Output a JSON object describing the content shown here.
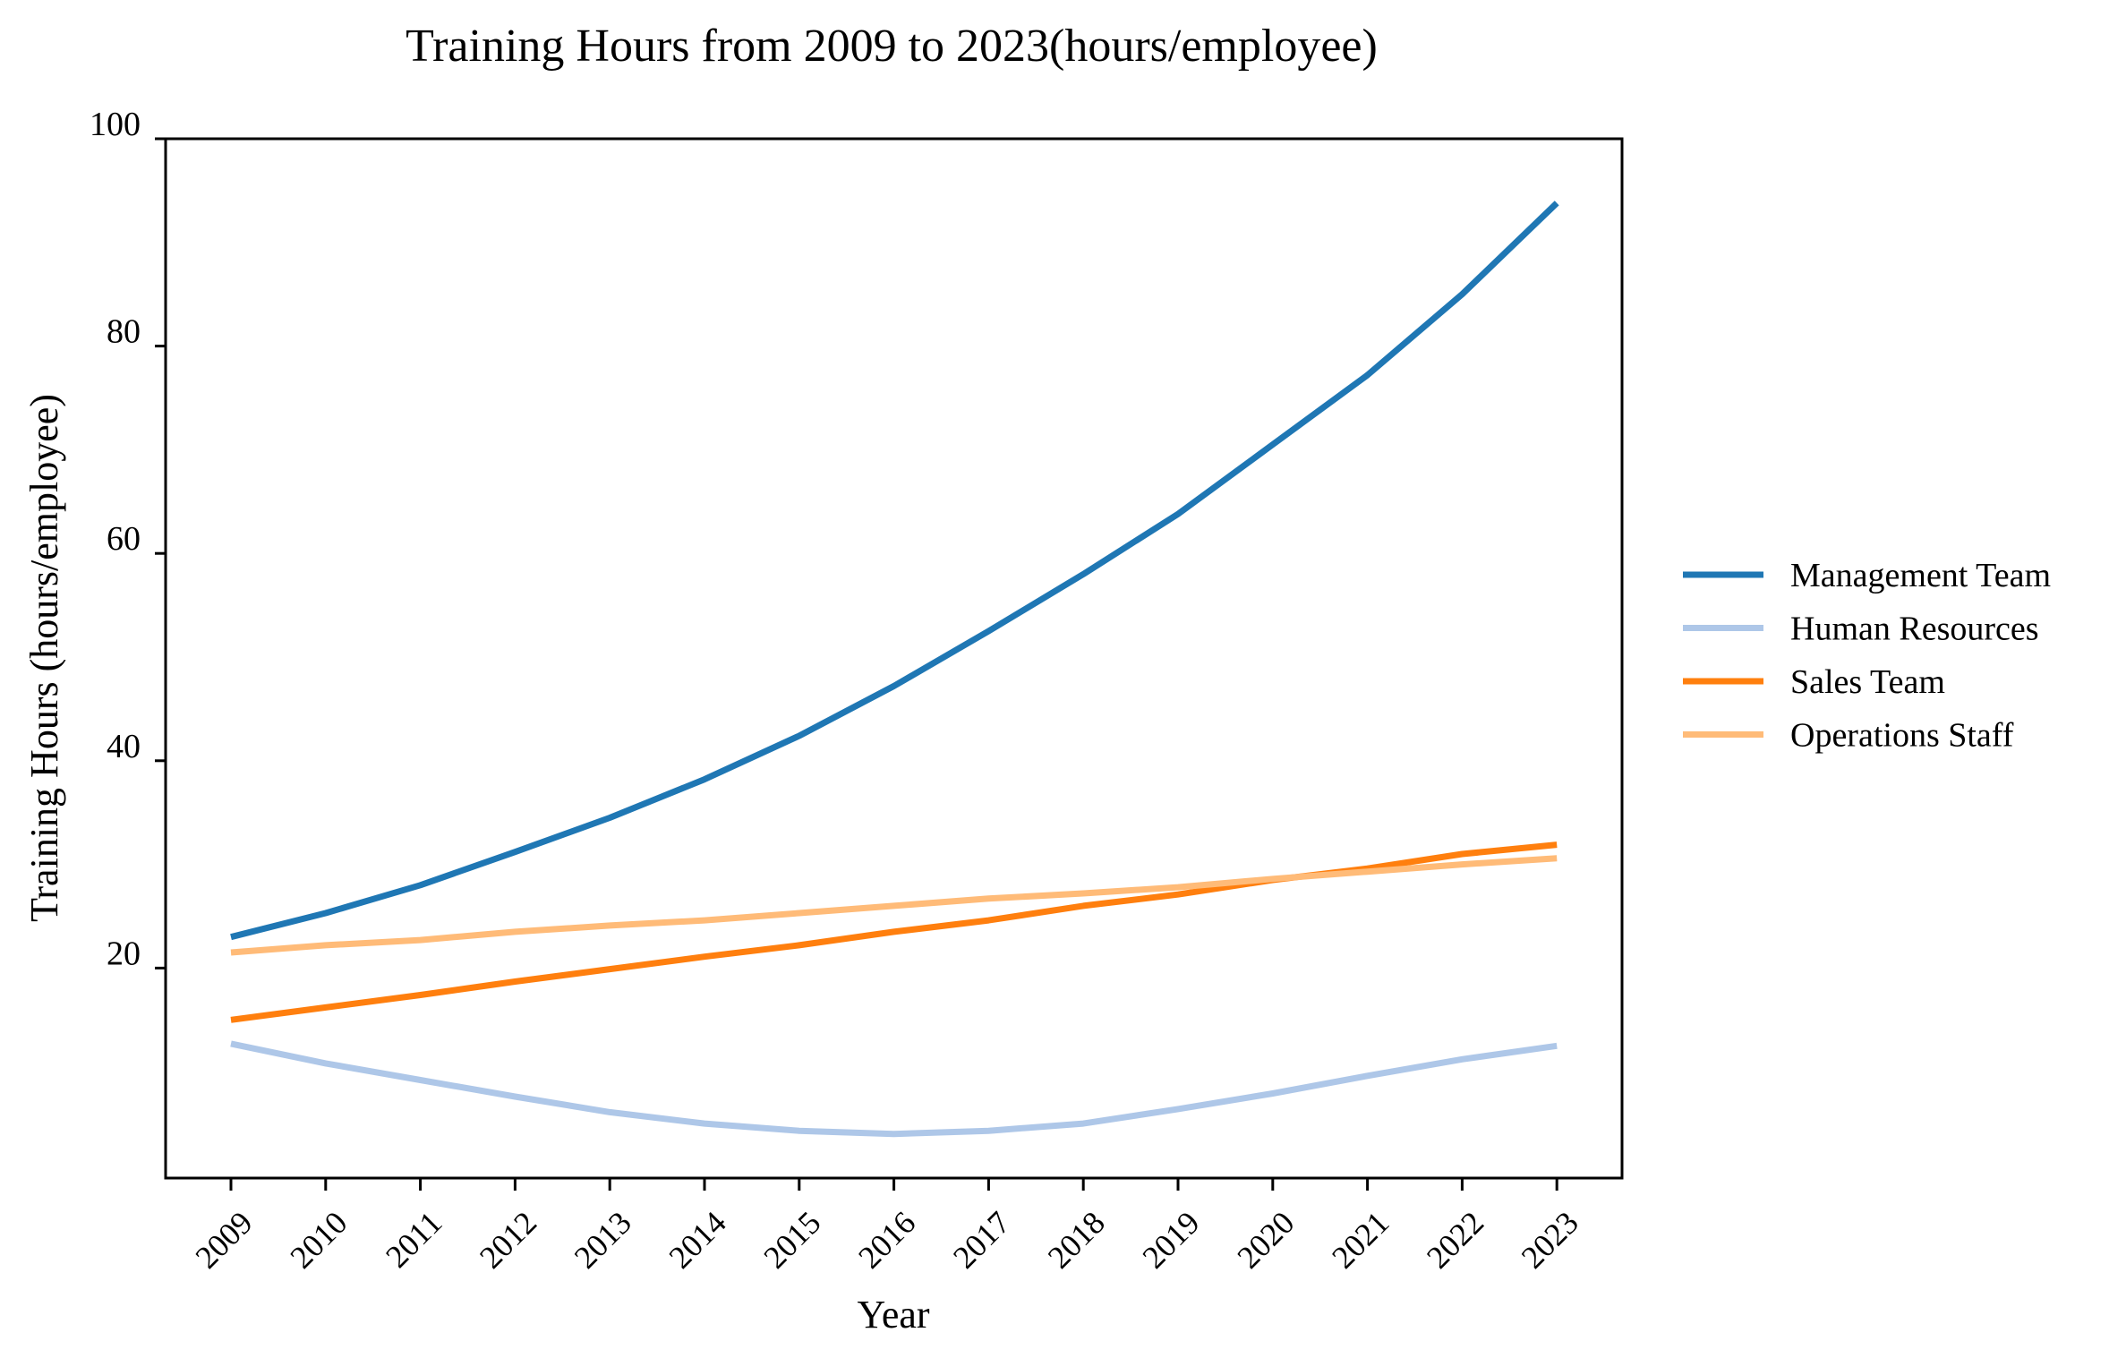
{
  "chart_data": {
    "type": "line",
    "title": "Training Hours from 2009 to 2023(hours/employee)",
    "xlabel": "Year",
    "ylabel": "Training Hours (hours/employee)",
    "ylim": [
      0,
      100
    ],
    "yticks": [
      20,
      40,
      60,
      80,
      100
    ],
    "grid": false,
    "legend_position": "right",
    "categories": [
      "2009",
      "2010",
      "2011",
      "2012",
      "2013",
      "2014",
      "2015",
      "2016",
      "2017",
      "2018",
      "2019",
      "2020",
      "2021",
      "2022",
      "2023"
    ],
    "series": [
      {
        "name": "Management Team",
        "color": "#1f77b4",
        "values": [
          23.0,
          25.3,
          28.0,
          31.2,
          34.5,
          38.2,
          42.4,
          47.2,
          52.5,
          58.0,
          63.8,
          70.5,
          77.2,
          85.0,
          93.8
        ]
      },
      {
        "name": "Human Resources",
        "color": "#aec7e8",
        "values": [
          12.7,
          10.8,
          9.2,
          7.6,
          6.1,
          5.0,
          4.3,
          4.0,
          4.3,
          5.0,
          6.4,
          7.9,
          9.6,
          11.2,
          12.5
        ]
      },
      {
        "name": "Sales Team",
        "color": "#ff7f0e",
        "values": [
          15.0,
          16.2,
          17.4,
          18.7,
          19.9,
          21.1,
          22.2,
          23.5,
          24.6,
          26.0,
          27.1,
          28.5,
          29.6,
          31.0,
          31.9
        ]
      },
      {
        "name": "Operations Staff",
        "color": "#ffbb78",
        "values": [
          21.5,
          22.2,
          22.7,
          23.5,
          24.1,
          24.6,
          25.3,
          26.0,
          26.7,
          27.2,
          27.8,
          28.6,
          29.3,
          30.0,
          30.6
        ]
      }
    ]
  }
}
